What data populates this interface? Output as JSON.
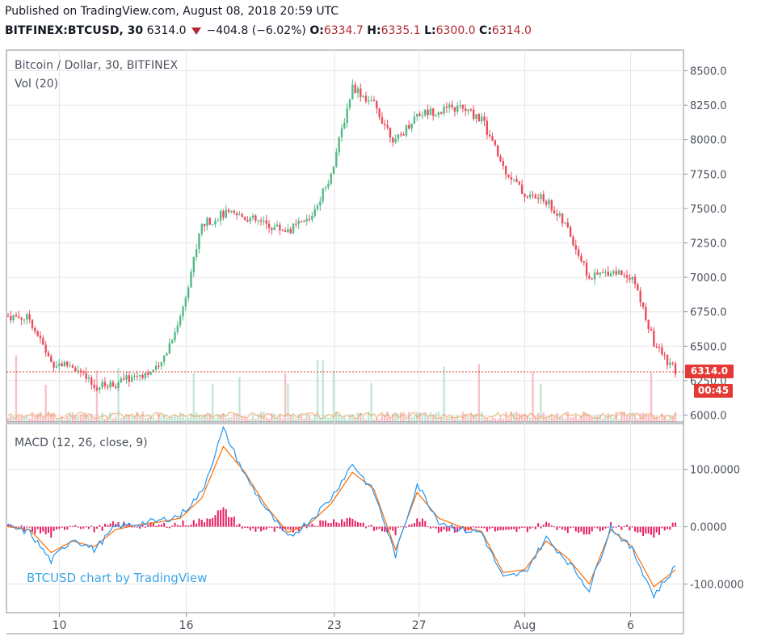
{
  "header": {
    "published": "Published on TradingView.com, August 08, 2018 20:59 UTC",
    "symbol": "BITFINEX:BTCUSD, 30",
    "last": "6314.0",
    "change": "−404.8 (−6.02%)",
    "o_label": "O:",
    "o_value": "6334.7",
    "h_label": "H:",
    "h_value": "6335.1",
    "l_label": "L:",
    "l_value": "6300.0",
    "c_label": "C:",
    "c_value": "6314.0"
  },
  "colors": {
    "up": "#53b987",
    "down": "#eb4d5c",
    "macd_line": "#2196f3",
    "signal_line": "#ff6d00",
    "histogram": "#e91e63",
    "price_line": "#e53935",
    "grid": "#e6e6e6"
  },
  "price_pane": {
    "title": "Bitcoin / Dollar, 30, BITFINEX",
    "volume_label": "Vol (20)",
    "current_price_tag": "6314.0",
    "countdown_tag": "00:45"
  },
  "macd_pane": {
    "title": "MACD (12, 26, close, 9)"
  },
  "watermark": "BTCUSD chart by TradingView",
  "chart_data": [
    {
      "type": "line",
      "title": "Bitcoin / Dollar, 30, BITFINEX",
      "ylim": [
        5950,
        8650
      ],
      "y_ticks": [
        "8500.0",
        "8250.0",
        "8000.0",
        "7750.0",
        "7500.0",
        "7250.0",
        "7000.0",
        "6750.0",
        "6500.0",
        "6250.0",
        "6000.0"
      ],
      "x_ticks": [
        "10",
        "16",
        "23",
        "27",
        "Aug",
        "6"
      ],
      "x": [
        "Jul 8",
        "Jul 9",
        "Jul 10",
        "Jul 11",
        "Jul 12",
        "Jul 13",
        "Jul 14",
        "Jul 15",
        "Jul 16",
        "Jul 17",
        "Jul 18",
        "Jul 19",
        "Jul 20",
        "Jul 21",
        "Jul 22",
        "Jul 23",
        "Jul 24",
        "Jul 25",
        "Jul 26",
        "Jul 27",
        "Jul 28",
        "Jul 29",
        "Jul 30",
        "Jul 31",
        "Aug 1",
        "Aug 2",
        "Aug 3",
        "Aug 4",
        "Aug 5",
        "Aug 6",
        "Aug 7",
        "Aug 8"
      ],
      "series": [
        {
          "values": [
            6720,
            6700,
            6380,
            6360,
            6200,
            6230,
            6290,
            6330,
            6710,
            7380,
            7460,
            7440,
            7380,
            7340,
            7420,
            7750,
            8390,
            8250,
            7980,
            8190,
            8210,
            8230,
            8150,
            7800,
            7600,
            7560,
            7350,
            6990,
            7050,
            7010,
            6520,
            6314
          ]
        }
      ],
      "last_price": 6314.0
    },
    {
      "type": "line",
      "title": "MACD (12, 26, close, 9)",
      "ylim": [
        -150,
        180
      ],
      "y_ticks": [
        "100.0000",
        "0.0000",
        "-100.0000"
      ],
      "series": [
        {
          "name": "MACD",
          "values": [
            0,
            -10,
            -60,
            -20,
            -40,
            0,
            5,
            10,
            20,
            60,
            170,
            90,
            30,
            -20,
            10,
            50,
            110,
            60,
            -50,
            75,
            10,
            -5,
            -10,
            -90,
            -80,
            -20,
            -60,
            -110,
            0,
            -40,
            -120,
            -70
          ]
        },
        {
          "name": "Signal",
          "values": [
            0,
            -5,
            -45,
            -25,
            -35,
            -5,
            3,
            8,
            15,
            50,
            140,
            95,
            35,
            -10,
            5,
            40,
            95,
            65,
            -40,
            60,
            15,
            0,
            -8,
            -80,
            -75,
            -25,
            -55,
            -100,
            -5,
            -35,
            -105,
            -75
          ]
        }
      ]
    }
  ]
}
